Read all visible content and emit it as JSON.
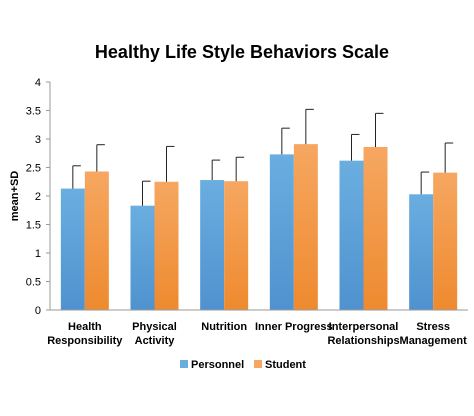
{
  "chart_data": {
    "type": "bar",
    "title": "Healthy Life Style Behaviors Scale",
    "ylabel": "mean+SD",
    "xlabel": "",
    "ylim": [
      0,
      4
    ],
    "yticks": [
      "0",
      "0.5",
      "1",
      "1.5",
      "2",
      "2.5",
      "3",
      "3.5",
      "4"
    ],
    "grid": false,
    "legend_position": "bottom",
    "categories": [
      [
        "Health",
        "Responsibility"
      ],
      [
        "Physical",
        "Activity"
      ],
      [
        "Nutrition"
      ],
      [
        "Inner Progress"
      ],
      [
        "Interpersonal",
        "Relationships"
      ],
      [
        "Stress",
        "Management"
      ]
    ],
    "series": [
      {
        "name": "Personnel",
        "color": "#6aaee0",
        "color_dark": "#4f92cf",
        "values": [
          2.13,
          1.83,
          2.28,
          2.73,
          2.62,
          2.03
        ],
        "sd": [
          0.4,
          0.43,
          0.35,
          0.46,
          0.46,
          0.39
        ]
      },
      {
        "name": "Student",
        "color": "#f6a761",
        "color_dark": "#ee8a2f",
        "values": [
          2.43,
          2.25,
          2.26,
          2.91,
          2.86,
          2.41
        ],
        "sd": [
          0.47,
          0.62,
          0.42,
          0.61,
          0.59,
          0.52
        ]
      }
    ]
  }
}
